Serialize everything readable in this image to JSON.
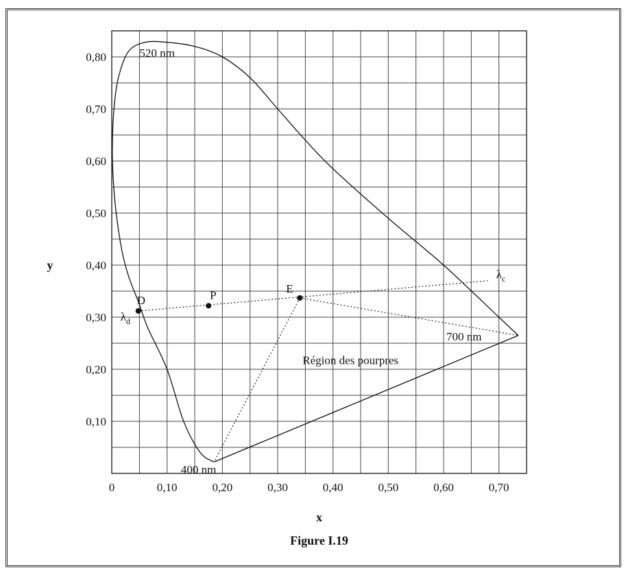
{
  "chart_data": {
    "type": "scatter",
    "title": "",
    "caption": "Figure I.19",
    "xlabel": "x",
    "ylabel": "y",
    "xlim": [
      0,
      0.75
    ],
    "ylim": [
      0,
      0.85
    ],
    "grid": true,
    "x_ticks": [
      {
        "v": 0.0,
        "label": "0"
      },
      {
        "v": 0.1,
        "label": "0,10"
      },
      {
        "v": 0.2,
        "label": "0,20"
      },
      {
        "v": 0.3,
        "label": "0,30"
      },
      {
        "v": 0.4,
        "label": "0,40"
      },
      {
        "v": 0.5,
        "label": "0,50"
      },
      {
        "v": 0.6,
        "label": "0,60"
      },
      {
        "v": 0.7,
        "label": "0,70"
      }
    ],
    "y_ticks": [
      {
        "v": 0.1,
        "label": "0,10"
      },
      {
        "v": 0.2,
        "label": "0,20"
      },
      {
        "v": 0.3,
        "label": "0,30"
      },
      {
        "v": 0.4,
        "label": "0,40"
      },
      {
        "v": 0.5,
        "label": "0,50"
      },
      {
        "v": 0.6,
        "label": "0,60"
      },
      {
        "v": 0.7,
        "label": "0,70"
      },
      {
        "v": 0.8,
        "label": "0,80"
      }
    ],
    "spectral_locus": [
      [
        0.185,
        0.022
      ],
      [
        0.16,
        0.04
      ],
      [
        0.13,
        0.1
      ],
      [
        0.1,
        0.2
      ],
      [
        0.065,
        0.28
      ],
      [
        0.048,
        0.33
      ],
      [
        0.03,
        0.38
      ],
      [
        0.018,
        0.43
      ],
      [
        0.008,
        0.5
      ],
      [
        0.003,
        0.56
      ],
      [
        0.001,
        0.62
      ],
      [
        0.004,
        0.7
      ],
      [
        0.012,
        0.76
      ],
      [
        0.03,
        0.81
      ],
      [
        0.06,
        0.828
      ],
      [
        0.1,
        0.828
      ],
      [
        0.15,
        0.82
      ],
      [
        0.2,
        0.8
      ],
      [
        0.25,
        0.76
      ],
      [
        0.3,
        0.7
      ],
      [
        0.35,
        0.64
      ],
      [
        0.4,
        0.585
      ],
      [
        0.5,
        0.49
      ],
      [
        0.6,
        0.4
      ],
      [
        0.7,
        0.3
      ],
      [
        0.735,
        0.265
      ]
    ],
    "purple_line": [
      [
        0.185,
        0.022
      ],
      [
        0.735,
        0.265
      ]
    ],
    "dotted_lines": [
      [
        [
          0.048,
          0.312
        ],
        [
          0.68,
          0.37
        ]
      ],
      [
        [
          0.34,
          0.337
        ],
        [
          0.735,
          0.265
        ]
      ],
      [
        [
          0.34,
          0.337
        ],
        [
          0.185,
          0.022
        ]
      ]
    ],
    "points": [
      {
        "name": "D",
        "sub": "d",
        "x": 0.048,
        "y": 0.312
      },
      {
        "name": "P",
        "x": 0.175,
        "y": 0.322
      },
      {
        "name": "E",
        "x": 0.34,
        "y": 0.337
      }
    ],
    "annotations": [
      {
        "text": "520 nm",
        "x": 0.05,
        "y": 0.8
      },
      {
        "text": "400 nm",
        "x": 0.125,
        "y": 0.0
      },
      {
        "text": "700 nm",
        "x": 0.605,
        "y": 0.255
      },
      {
        "text": "λ",
        "sub": "c",
        "x": 0.695,
        "y": 0.375
      },
      {
        "text": "Région des pourpres",
        "x": 0.345,
        "y": 0.21
      }
    ]
  }
}
